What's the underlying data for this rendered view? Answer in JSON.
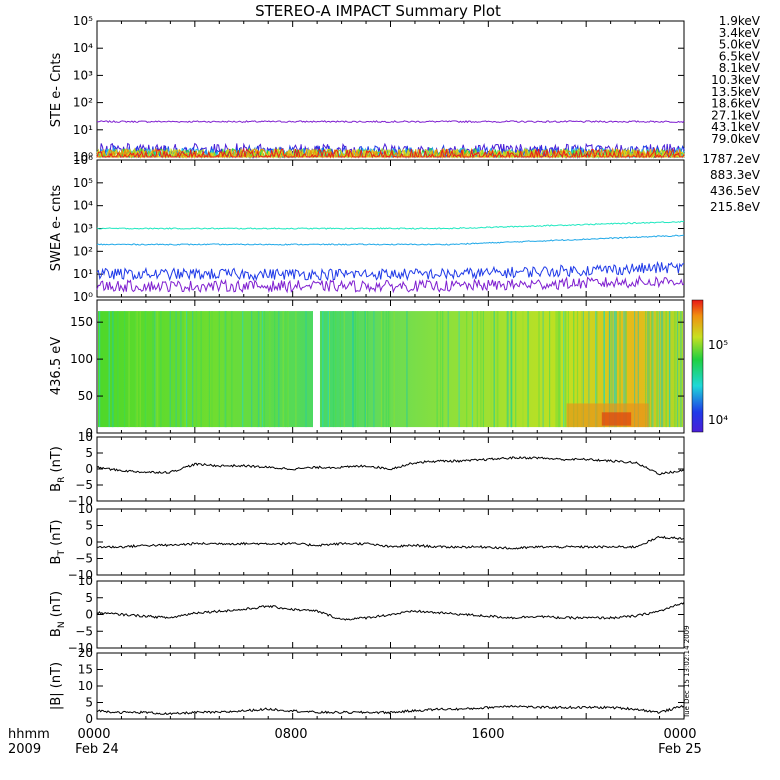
{
  "title": "STEREO-A IMPACT Summary Plot",
  "footer": {
    "label_hhmm": "hhmm",
    "label_year": "2009",
    "ticks": [
      "0000",
      "0800",
      "1600",
      "0000"
    ],
    "dates": [
      "Feb 24",
      "Feb 25"
    ]
  },
  "timestamp_vertical": "Tue Dec 15 13:02:14 2009",
  "colors": {
    "ste": [
      "#7f1fd0",
      "#4a1fd8",
      "#1f3ae8",
      "#1fa8e8",
      "#1fd8d0",
      "#20d040",
      "#8ad820",
      "#c8d820",
      "#e8c820",
      "#e8900a",
      "#e8201a"
    ],
    "swea": [
      "#7f1fd0",
      "#1f3ae8",
      "#1fa8e8",
      "#1fe8c0"
    ]
  },
  "chart_data": [
    {
      "type": "line",
      "panel": "STE",
      "ylabel": "STE e- Cnts",
      "yscale": "log",
      "ylim": [
        1,
        100000
      ],
      "yticks": [
        "10⁰",
        "10¹",
        "10²",
        "10³",
        "10⁴",
        "10⁵"
      ],
      "legend_position": "right",
      "series": [
        {
          "name": "1.9keV",
          "level": 20
        },
        {
          "name": "3.4keV",
          "level": 1.6
        },
        {
          "name": "5.0keV",
          "level": 1.3
        },
        {
          "name": "6.5keV",
          "level": 1.1
        },
        {
          "name": "8.1keV",
          "level": 1.0
        },
        {
          "name": "10.3keV",
          "level": 1.0
        },
        {
          "name": "13.5keV",
          "level": 1.0
        },
        {
          "name": "18.6keV",
          "level": 1.0
        },
        {
          "name": "27.1keV",
          "level": 1.0
        },
        {
          "name": "43.1keV",
          "level": 1.0
        },
        {
          "name": "79.0keV",
          "level": 1.0
        }
      ]
    },
    {
      "type": "line",
      "panel": "SWEA",
      "ylabel": "SWEA e- cnts",
      "yscale": "log",
      "ylim": [
        1,
        1000000
      ],
      "yticks": [
        "10⁰",
        "10¹",
        "10²",
        "10³",
        "10⁴",
        "10⁵",
        "10⁶"
      ],
      "legend_position": "right",
      "series": [
        {
          "name": "1787.2eV",
          "start": 3,
          "end": 5
        },
        {
          "name": "883.3eV",
          "start": 10,
          "end": 20
        },
        {
          "name": "436.5eV",
          "start": 200,
          "end": 500
        },
        {
          "name": "215.8eV",
          "start": 1000,
          "end": 2000
        }
      ]
    },
    {
      "type": "heatmap",
      "panel": "PAD",
      "ylabel": "436.5 eV",
      "ylim": [
        0,
        180
      ],
      "yticks": [
        "0",
        "50",
        "100",
        "150"
      ],
      "colorbar_ticks": [
        "10⁴",
        "10⁵"
      ],
      "data_gap": [
        "0850",
        "0920"
      ]
    },
    {
      "type": "line",
      "panel": "BR",
      "ylabel_main": "B",
      "ylabel_sub": "R",
      "ylabel_unit": " (nT)",
      "ylim": [
        -10,
        10
      ],
      "yticks": [
        "−10",
        "−5",
        "0",
        "5",
        "10"
      ],
      "x_hours": [
        0,
        1,
        2,
        3,
        4,
        5,
        6,
        7,
        8,
        9,
        10,
        11,
        12,
        13,
        14,
        15,
        16,
        17,
        18,
        19,
        20,
        21,
        22,
        23,
        24
      ],
      "values": [
        0.5,
        -0.5,
        -1.0,
        -1.0,
        1.5,
        1.0,
        1.0,
        0.5,
        0.0,
        0.5,
        0.5,
        1.0,
        0.0,
        2.0,
        2.5,
        2.5,
        3.0,
        3.5,
        3.5,
        3.0,
        3.0,
        2.5,
        2.0,
        -1.5,
        -0.5
      ]
    },
    {
      "type": "line",
      "panel": "BT",
      "ylabel_main": "B",
      "ylabel_sub": "T",
      "ylabel_unit": " (nT)",
      "ylim": [
        -10,
        10
      ],
      "yticks": [
        "−10",
        "−5",
        "0",
        "5",
        "10"
      ],
      "x_hours": [
        0,
        1,
        2,
        3,
        4,
        5,
        6,
        7,
        8,
        9,
        10,
        11,
        12,
        13,
        14,
        15,
        16,
        17,
        18,
        19,
        20,
        21,
        22,
        23,
        24
      ],
      "values": [
        -1.5,
        -1.5,
        -1.0,
        -1.0,
        -0.5,
        -0.5,
        -0.5,
        -0.5,
        -0.5,
        -1.0,
        -0.5,
        -0.5,
        -1.5,
        -1.0,
        -1.5,
        -1.5,
        -1.5,
        -2.0,
        -1.5,
        -1.5,
        -1.5,
        -1.5,
        -1.5,
        1.5,
        1.0
      ]
    },
    {
      "type": "line",
      "panel": "BN",
      "ylabel_main": "B",
      "ylabel_sub": "N",
      "ylabel_unit": " (nT)",
      "ylim": [
        -10,
        10
      ],
      "yticks": [
        "−10",
        "−5",
        "0",
        "5",
        "10"
      ],
      "x_hours": [
        0,
        1,
        2,
        3,
        4,
        5,
        6,
        7,
        8,
        9,
        10,
        11,
        12,
        13,
        14,
        15,
        16,
        17,
        18,
        19,
        20,
        21,
        22,
        23,
        24
      ],
      "values": [
        0.5,
        0.0,
        -0.5,
        -1.0,
        0.5,
        1.0,
        1.5,
        2.5,
        1.5,
        1.0,
        -1.5,
        -1.0,
        0.0,
        1.0,
        0.5,
        0.0,
        -0.5,
        -1.0,
        -0.5,
        -1.0,
        -1.0,
        -1.0,
        -0.5,
        1.0,
        3.5
      ]
    },
    {
      "type": "line",
      "panel": "Bmag",
      "ylabel_main": "|B| (nT)",
      "ylim": [
        0,
        20
      ],
      "yticks": [
        "0",
        "5",
        "10",
        "15",
        "20"
      ],
      "x_hours": [
        0,
        1,
        2,
        3,
        4,
        5,
        6,
        7,
        8,
        9,
        10,
        11,
        12,
        13,
        14,
        15,
        16,
        17,
        18,
        19,
        20,
        21,
        22,
        23,
        24
      ],
      "values": [
        2.5,
        2.0,
        2.0,
        1.5,
        2.0,
        2.0,
        2.5,
        3.0,
        2.5,
        2.0,
        2.0,
        2.0,
        2.0,
        2.5,
        3.0,
        3.0,
        3.5,
        4.0,
        3.5,
        3.5,
        3.5,
        3.5,
        3.0,
        2.0,
        4.0
      ]
    }
  ]
}
